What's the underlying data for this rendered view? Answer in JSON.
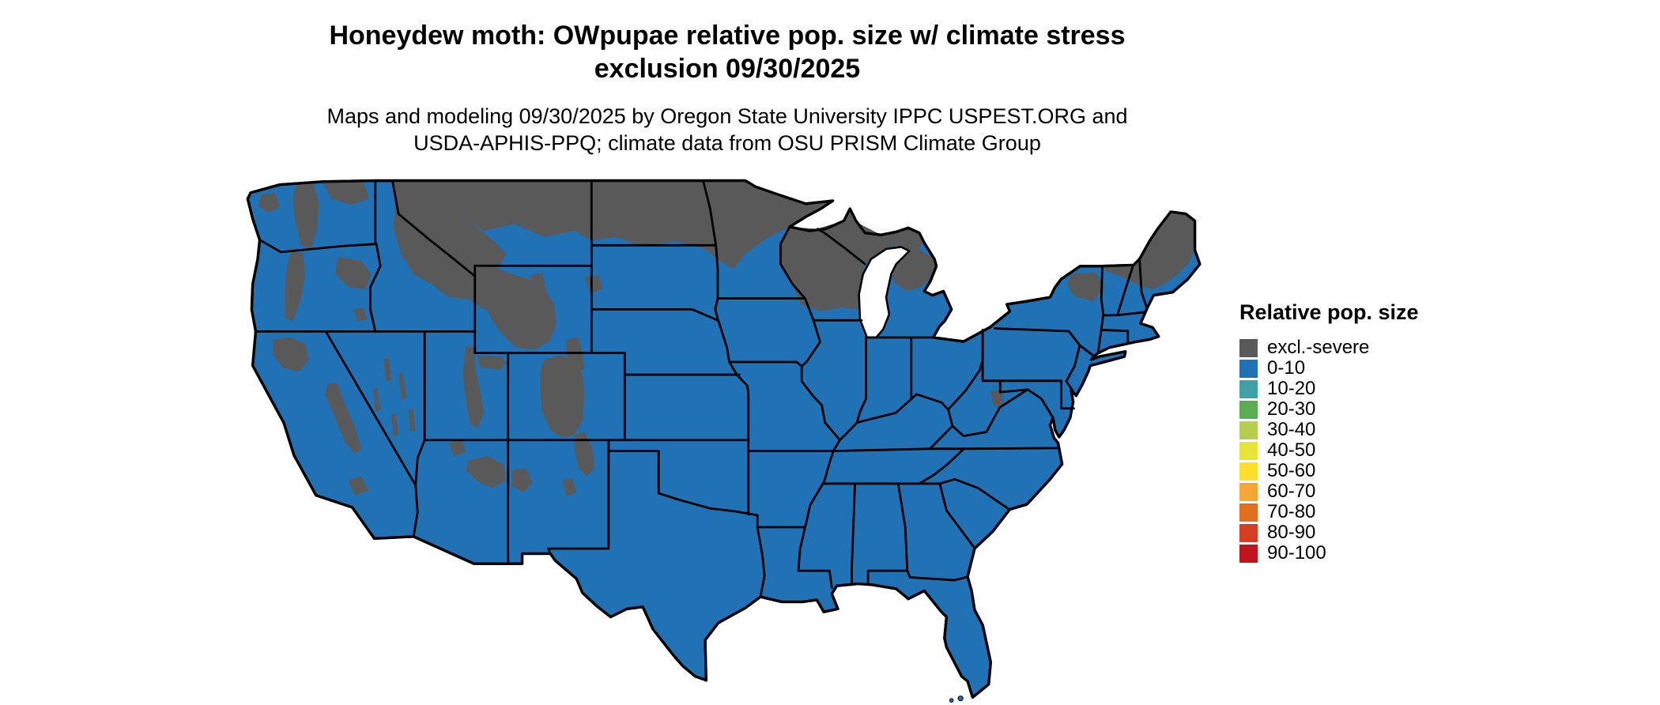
{
  "title": {
    "line1": "Honeydew moth: OWpupae relative pop. size w/ climate stress",
    "line2": "exclusion 09/30/2025"
  },
  "subtitle": {
    "line1": "Maps and modeling 09/30/2025 by Oregon State University IPPC USPEST.ORG and",
    "line2": "USDA-APHIS-PPQ; climate data from OSU PRISM Climate Group"
  },
  "map": {
    "region": "Continental United States",
    "base_category": "0-10",
    "excluded_category": "excl.-severe"
  },
  "legend": {
    "title": "Relative pop. size",
    "items": [
      {
        "label": "excl.-severe",
        "color": "#595959"
      },
      {
        "label": "0-10",
        "color": "#2171b5"
      },
      {
        "label": "10-20",
        "color": "#3fa0a8"
      },
      {
        "label": "20-30",
        "color": "#5aad53"
      },
      {
        "label": "30-40",
        "color": "#b5ce4e"
      },
      {
        "label": "40-50",
        "color": "#e8e539"
      },
      {
        "label": "50-60",
        "color": "#ffdf29"
      },
      {
        "label": "60-70",
        "color": "#f5a733"
      },
      {
        "label": "70-80",
        "color": "#e26f1e"
      },
      {
        "label": "80-90",
        "color": "#d63e23"
      },
      {
        "label": "90-100",
        "color": "#c0151d"
      }
    ]
  }
}
